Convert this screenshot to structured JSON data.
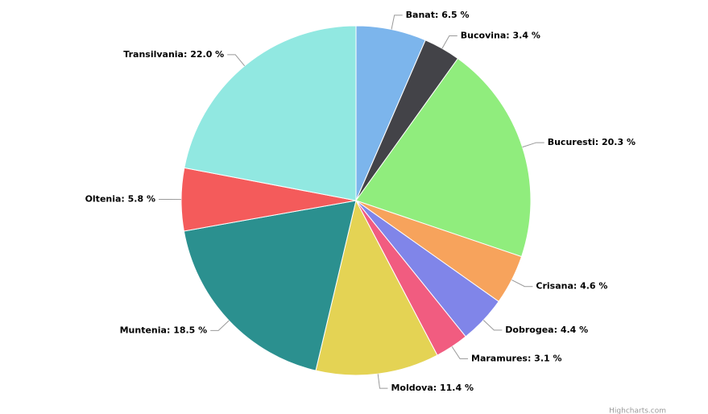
{
  "chart_data": {
    "type": "pie",
    "values": [
      6.5,
      3.4,
      20.3,
      4.6,
      4.4,
      3.1,
      11.4,
      18.5,
      5.8,
      22.0
    ],
    "value_labels": [
      "Banat: 6.5 %",
      "Bucovina: 3.4 %",
      "Bucuresti: 20.3 %",
      "Crisana: 4.6 %",
      "Dobrogea: 4.4 %",
      "Maramures: 3.1 %",
      "Moldova: 11.4 %",
      "Muntenia: 18.5 %",
      "Oltenia: 5.8 %",
      "Transilvania: 22.0 %"
    ],
    "colors": [
      "#7cb5ec",
      "#434348",
      "#90ed7d",
      "#f7a35c",
      "#8085e9",
      "#f15c80",
      "#e4d354",
      "#2b908f",
      "#f45b5b",
      "#91e8e1"
    ],
    "credits": "Highcharts.com"
  }
}
